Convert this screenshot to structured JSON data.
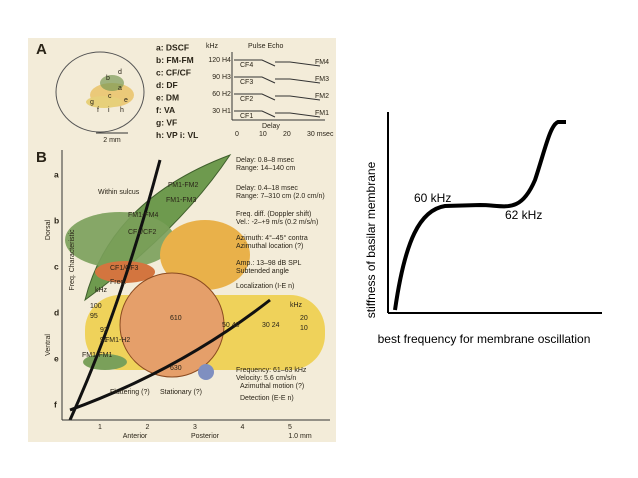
{
  "figure": {
    "panel_a": {
      "label": "A",
      "legend": [
        "a: DSCF",
        "b: FM-FM",
        "c: CF/CF",
        "d: DF",
        "e: DM",
        "f: VA",
        "g: VF",
        "h: VP  i: VL"
      ],
      "brain_letters": [
        "d",
        "b",
        "a",
        "c",
        "e",
        "g",
        "f",
        "i",
        "h"
      ],
      "scale": "2 mm",
      "timing": {
        "unit": "kHz",
        "header": "Pulse  Echo",
        "freqs": [
          "120",
          "90",
          "60",
          "30"
        ],
        "harmonics": [
          "H4",
          "H3",
          "H2",
          "H1"
        ],
        "cf": [
          "CF4",
          "CF3",
          "CF2",
          "CF1"
        ],
        "fm": [
          "FM4",
          "FM3",
          "FM2",
          "FM1"
        ],
        "delay": "Delay",
        "time_ticks": [
          "0",
          "10",
          "20",
          "30 msec"
        ]
      }
    },
    "panel_b": {
      "label": "B",
      "rows": [
        "a",
        "b",
        "c",
        "d",
        "e",
        "f"
      ],
      "axis_dorsal": "Dorsal",
      "axis_ventral": "Ventral",
      "axis_freq": "Freq. Characteristic",
      "cols": [
        "1",
        "2",
        "3",
        "4",
        "5"
      ],
      "anterior": "Anterior",
      "posterior": "Posterior",
      "scale": "1.0 mm",
      "regions": [
        "Within sulcus",
        "FM1-FM2",
        "FM1-FM3",
        "FM1-FM4",
        "CF1/CF2",
        "CF1/CF3",
        "Freq.",
        "kHz",
        "FM1-H2",
        "FM1-FM1",
        "610",
        "630",
        "50 40",
        "30 24",
        "20",
        "10",
        "100",
        "95",
        "92",
        "91",
        "Fluttering (?)",
        "Stationary (?)"
      ],
      "notes": [
        "Delay: 0.8–8 msec",
        "Range: 14–140 cm",
        "Delay: 0.4–18 msec",
        "Range: 7–310 cm (2.0 cm/n)",
        "Freq. diff. (Doppler shift)",
        "Vel.: -2–+9 m/s (0.2 m/s/n)",
        "Azimuth: 4°–45° contra",
        "Azimuthal location (?)",
        "Amp.: 13–98 dB SPL",
        "Subtended angle",
        "Localization (I-E n)",
        "kHz",
        "Frequency: 61–63 kHz",
        "Velocity: 5.6 cm/s/n",
        "Azimuthal motion (?)",
        "Detection (E-E n)"
      ]
    }
  },
  "sketch": {
    "y_label": "stiffness of basilar membrane",
    "x_label": "best frequency for membrane oscillation",
    "annotations": [
      "60 kHz",
      "62 kHz"
    ]
  }
}
